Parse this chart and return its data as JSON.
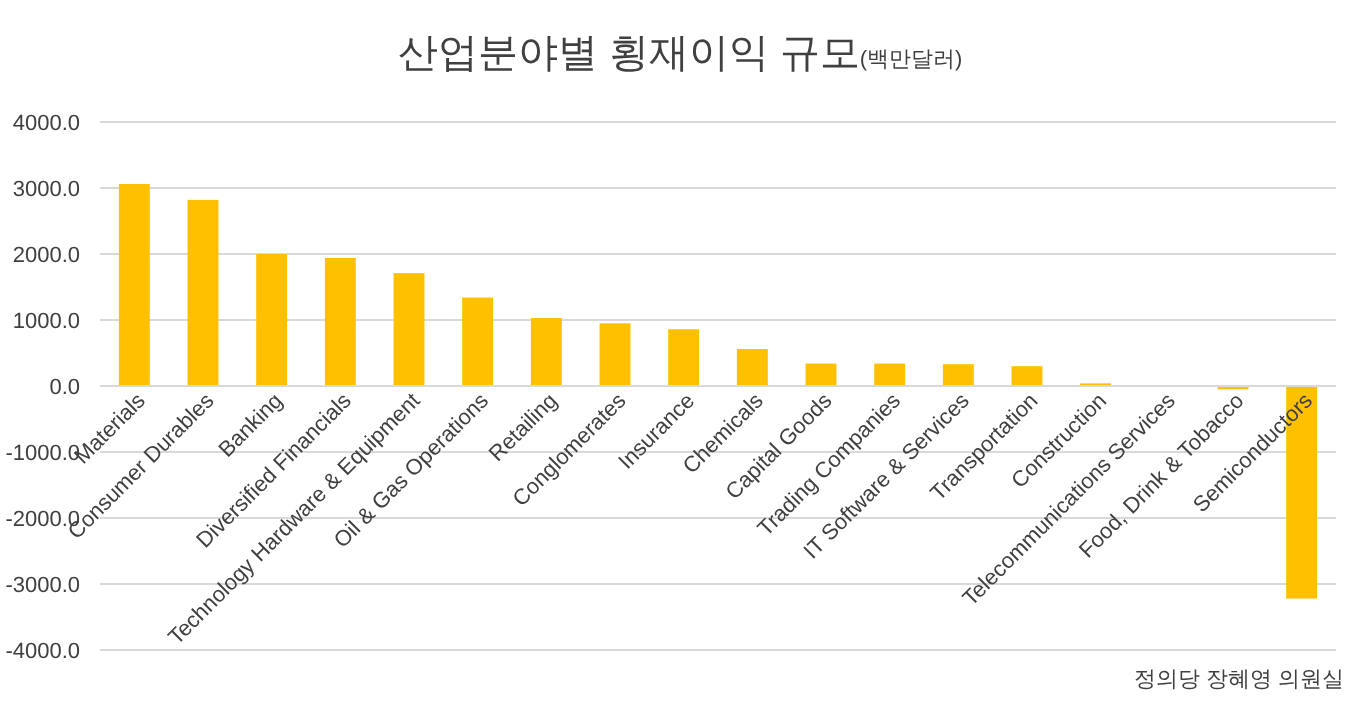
{
  "chart_data": {
    "type": "bar",
    "title": "산업분야별 횡재이익 규모",
    "subtitle": "(백만달러)",
    "categories": [
      "Materials",
      "Consumer Durables",
      "Banking",
      "Diversified Financials",
      "Technology Hardware & Equipment",
      "Oil & Gas Operations",
      "Retailing",
      "Conglomerates",
      "Insurance",
      "Chemicals",
      "Capital Goods",
      "Trading Companies",
      "IT Software & Services",
      "Transportation",
      "Construction",
      "Telecommunications Services",
      "Food, Drink & Tobacco",
      "Semiconductors"
    ],
    "values": [
      3060,
      2820,
      2000,
      1940,
      1710,
      1340,
      1030,
      950,
      860,
      560,
      340,
      340,
      330,
      300,
      40,
      0,
      -50,
      -3220
    ],
    "color": "#ffc000",
    "ylim": [
      -4000,
      4000
    ],
    "yticks": [
      {
        "value": -4000,
        "label": "-4000.0"
      },
      {
        "value": -3000,
        "label": "-3000.0"
      },
      {
        "value": -2000,
        "label": "-2000.0"
      },
      {
        "value": -1000,
        "label": "-1000.0"
      },
      {
        "value": 0,
        "label": "0.0"
      },
      {
        "value": 1000,
        "label": "1000.0"
      },
      {
        "value": 2000,
        "label": "2000.0"
      },
      {
        "value": 3000,
        "label": "3000.0"
      },
      {
        "value": 4000,
        "label": "4000.0"
      }
    ],
    "grid": "y",
    "annotations": [
      "정의당 장혜영 의원실"
    ]
  }
}
